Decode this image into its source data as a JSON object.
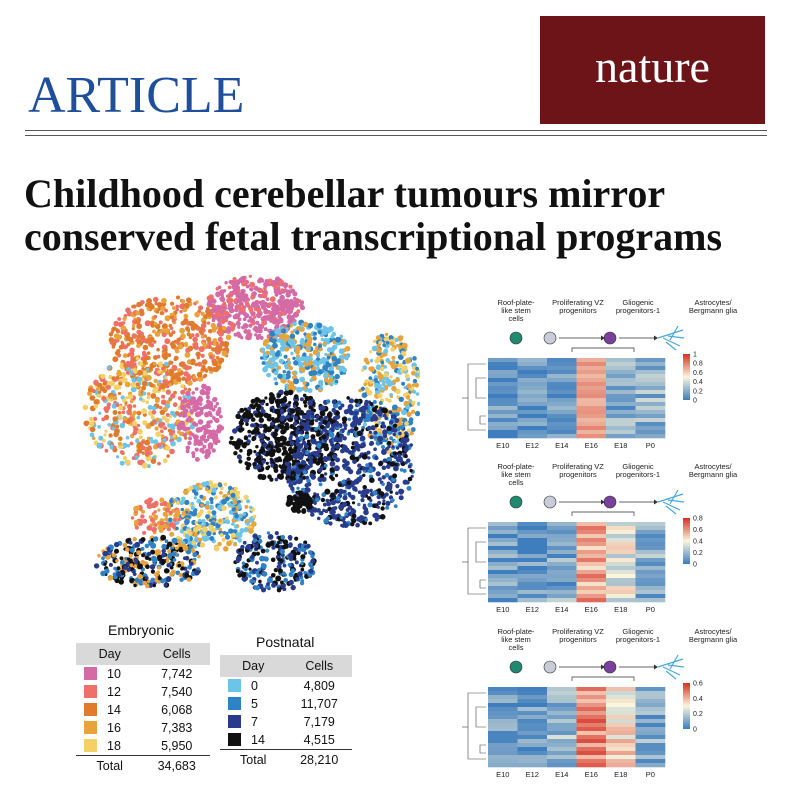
{
  "header": {
    "article_label": "ARTICLE",
    "journal_name": "nature",
    "journal_color": "#6d1418",
    "article_color": "#1f4e9a"
  },
  "headline": {
    "line1": "Childhood cerebellar tumours mirror",
    "line2": "conserved fetal transcriptional programs"
  },
  "tables": {
    "embryonic": {
      "title": "Embryonic",
      "col_day": "Day",
      "col_cells": "Cells",
      "rows": [
        {
          "day": "10",
          "cells": "7,742",
          "color": "#d46aa6"
        },
        {
          "day": "12",
          "cells": "7,540",
          "color": "#ef6f6a"
        },
        {
          "day": "14",
          "cells": "6,068",
          "color": "#e07b2e"
        },
        {
          "day": "16",
          "cells": "7,383",
          "color": "#e8a33a"
        },
        {
          "day": "18",
          "cells": "5,950",
          "color": "#f5d066"
        }
      ],
      "total_label": "Total",
      "total": "34,683"
    },
    "postnatal": {
      "title": "Postnatal",
      "col_day": "Day",
      "col_cells": "Cells",
      "rows": [
        {
          "day": "0",
          "cells": "4,809",
          "color": "#6cc4e8"
        },
        {
          "day": "5",
          "cells": "11,707",
          "color": "#2f83c5"
        },
        {
          "day": "7",
          "cells": "7,179",
          "color": "#283b8c"
        },
        {
          "day": "14",
          "cells": "4,515",
          "color": "#111111"
        }
      ],
      "total_label": "Total",
      "total": "28,210"
    }
  },
  "lineage": {
    "stages": [
      "Roof-plate-like stem cells",
      "Proliferating VZ progenitors",
      "Gliogenic progenitors-1",
      "Astrocytes/ Bergmann glia"
    ],
    "stage_lines": [
      [
        "Roof-plate-",
        "like stem",
        "cells"
      ],
      [
        "Proliferating VZ",
        "progenitors"
      ],
      [
        "Gliogenic",
        "progenitors-1"
      ],
      [
        "Astrocytes/",
        "Bergmann glia"
      ]
    ],
    "icon_colors": [
      "#1f8a70",
      "#c7ccd6",
      "#7b3f9e",
      "#4aa8d8"
    ]
  },
  "heatmaps": [
    {
      "columns": [
        "E10",
        "E12",
        "E14",
        "E16",
        "E18",
        "P0"
      ],
      "scale_ticks": [
        "1",
        "0.8",
        "0.6",
        "0.4",
        "0.2",
        "0"
      ],
      "scale_max": 1
    },
    {
      "columns": [
        "E10",
        "E12",
        "E14",
        "E16",
        "E18",
        "P0"
      ],
      "scale_ticks": [
        "0.8",
        "0.6",
        "0.4",
        "0.2",
        "0"
      ],
      "scale_max": 0.8
    },
    {
      "columns": [
        "E10",
        "E12",
        "E14",
        "E16",
        "E18",
        "P0"
      ],
      "scale_ticks": [
        "0.6",
        "0.4",
        "0.2",
        "0"
      ],
      "scale_max": 0.6
    }
  ]
}
